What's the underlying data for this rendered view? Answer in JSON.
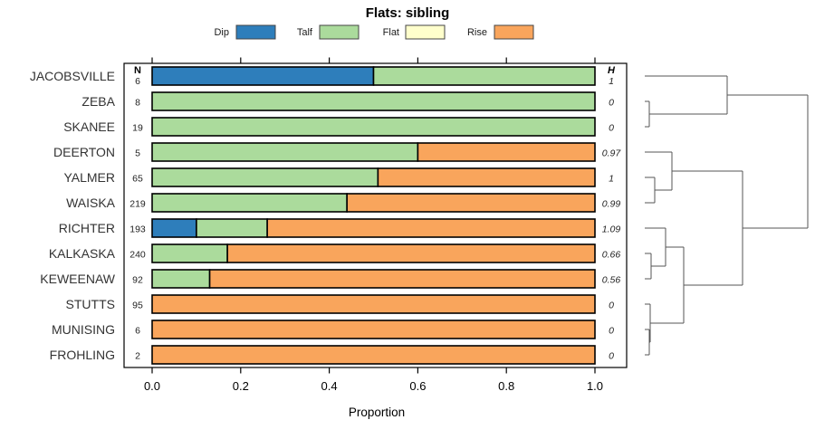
{
  "title": "Flats: sibling",
  "xlabel": "Proportion",
  "columns": {
    "n_header": "N",
    "h_header": "H"
  },
  "colors": {
    "dip": "#2E7EBB",
    "talf": "#ABDB9C",
    "flat": "#FFFFCC",
    "rise": "#F9A55C",
    "bar_border": "#000000",
    "box_border": "#000000",
    "dendro_line": "#555555"
  },
  "legend": {
    "items": [
      {
        "label": "Dip",
        "key": "dip"
      },
      {
        "label": "Talf",
        "key": "talf"
      },
      {
        "label": "Flat",
        "key": "flat"
      },
      {
        "label": "Rise",
        "key": "rise"
      }
    ]
  },
  "chart_data": {
    "type": "bar",
    "orientation": "horizontal",
    "stacked": true,
    "title": "Flats: sibling",
    "xlabel": "Proportion",
    "xlim": [
      0,
      1
    ],
    "x_ticks": [
      0,
      0.2,
      0.4,
      0.6,
      0.8,
      1.0
    ],
    "x_tick_labels": [
      "0.0",
      "0.2",
      "0.4",
      "0.6",
      "0.8",
      "1.0"
    ],
    "grid": false,
    "legend_position": "top",
    "categories": [
      "Dip",
      "Talf",
      "Flat",
      "Rise"
    ],
    "segment_order": [
      "dip",
      "talf",
      "flat",
      "rise"
    ],
    "rows": [
      {
        "name": "JACOBSVILLE",
        "n": "6",
        "h": "1",
        "segments": {
          "dip": 0.5,
          "talf": 0.5
        }
      },
      {
        "name": "ZEBA",
        "n": "8",
        "h": "0",
        "segments": {
          "talf": 1.0
        }
      },
      {
        "name": "SKANEE",
        "n": "19",
        "h": "0",
        "segments": {
          "talf": 1.0
        }
      },
      {
        "name": "DEERTON",
        "n": "5",
        "h": "0.97",
        "segments": {
          "talf": 0.6,
          "rise": 0.4
        }
      },
      {
        "name": "YALMER",
        "n": "65",
        "h": "1",
        "segments": {
          "talf": 0.51,
          "rise": 0.49
        }
      },
      {
        "name": "WAISKA",
        "n": "219",
        "h": "0.99",
        "segments": {
          "talf": 0.44,
          "rise": 0.56
        }
      },
      {
        "name": "RICHTER",
        "n": "193",
        "h": "1.09",
        "segments": {
          "dip": 0.1,
          "talf": 0.16,
          "rise": 0.74
        }
      },
      {
        "name": "KALKASKA",
        "n": "240",
        "h": "0.66",
        "segments": {
          "talf": 0.17,
          "rise": 0.83
        }
      },
      {
        "name": "KEWEENAW",
        "n": "92",
        "h": "0.56",
        "segments": {
          "talf": 0.13,
          "rise": 0.87
        }
      },
      {
        "name": "STUTTS",
        "n": "95",
        "h": "0",
        "segments": {
          "rise": 1.0
        }
      },
      {
        "name": "MUNISING",
        "n": "6",
        "h": "0",
        "segments": {
          "rise": 1.0
        }
      },
      {
        "name": "FROHLING",
        "n": "2",
        "h": "0",
        "segments": {
          "rise": 1.0
        }
      }
    ],
    "dendrogram": {
      "description": "hierarchical clustering of rows; x in px, y in row units (leaf i = row i center)",
      "leaf_x": 712,
      "segments": [
        [
          712,
          0,
          803,
          0
        ],
        [
          712,
          1,
          717,
          1
        ],
        [
          712,
          2,
          717,
          2
        ],
        [
          717,
          1,
          717,
          2
        ],
        [
          717,
          1.5,
          803,
          1.5
        ],
        [
          803,
          0,
          803,
          1.5
        ],
        [
          803,
          0.75,
          892,
          0.75
        ],
        [
          712,
          3,
          742,
          3
        ],
        [
          712,
          4,
          723,
          4
        ],
        [
          712,
          5,
          723,
          5
        ],
        [
          723,
          4,
          723,
          5
        ],
        [
          723,
          4.5,
          742,
          4.5
        ],
        [
          742,
          3,
          742,
          4.5
        ],
        [
          742,
          3.75,
          820,
          3.75
        ],
        [
          712,
          6,
          735,
          6
        ],
        [
          712,
          7,
          719,
          7
        ],
        [
          712,
          8,
          719,
          8
        ],
        [
          719,
          7,
          719,
          8
        ],
        [
          719,
          7.5,
          735,
          7.5
        ],
        [
          735,
          6,
          735,
          7.5
        ],
        [
          735,
          6.75,
          755,
          6.75
        ],
        [
          712,
          9,
          718,
          9
        ],
        [
          712,
          10,
          717,
          10
        ],
        [
          712,
          11,
          717,
          11
        ],
        [
          717,
          10,
          717,
          11
        ],
        [
          717,
          10.5,
          718,
          10.5
        ],
        [
          718,
          9,
          718,
          10.5
        ],
        [
          718,
          9.75,
          755,
          9.75
        ],
        [
          755,
          6.75,
          755,
          9.75
        ],
        [
          755,
          8.25,
          820,
          8.25
        ],
        [
          820,
          3.75,
          820,
          8.25
        ],
        [
          820,
          6,
          892,
          6
        ],
        [
          892,
          0.75,
          892,
          6
        ]
      ]
    }
  }
}
